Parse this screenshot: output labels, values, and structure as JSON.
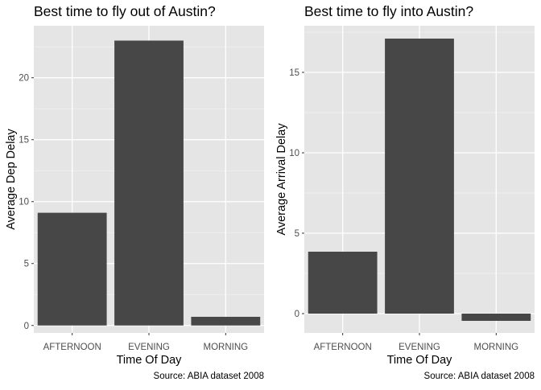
{
  "chart_data": [
    {
      "type": "bar",
      "title": "Best time to fly out of Austin?",
      "xlabel": "Time Of Day",
      "ylabel": "Average Dep Delay",
      "caption": "Source: ABIA dataset 2008",
      "categories": [
        "AFTERNOON",
        "EVENING",
        "MORNING"
      ],
      "values": [
        9.1,
        23.0,
        0.7
      ],
      "yticks": [
        0,
        5,
        10,
        15,
        20
      ],
      "ylim": [
        -0.6,
        24.2
      ],
      "bar_color": "#474747",
      "panel_color": "#e5e5e5",
      "grid": true,
      "legend": "none"
    },
    {
      "type": "bar",
      "title": "Best time to fly into Austin?",
      "xlabel": "Time Of Day",
      "ylabel": "Average Arrival Delay",
      "caption": "Source: ABIA dataset 2008",
      "categories": [
        "AFTERNOON",
        "EVENING",
        "MORNING"
      ],
      "values": [
        3.85,
        17.1,
        -0.45
      ],
      "yticks": [
        0,
        5,
        10,
        15
      ],
      "ylim": [
        -1.2,
        17.9
      ],
      "bar_color": "#474747",
      "panel_color": "#e5e5e5",
      "grid": true,
      "legend": "none"
    }
  ]
}
